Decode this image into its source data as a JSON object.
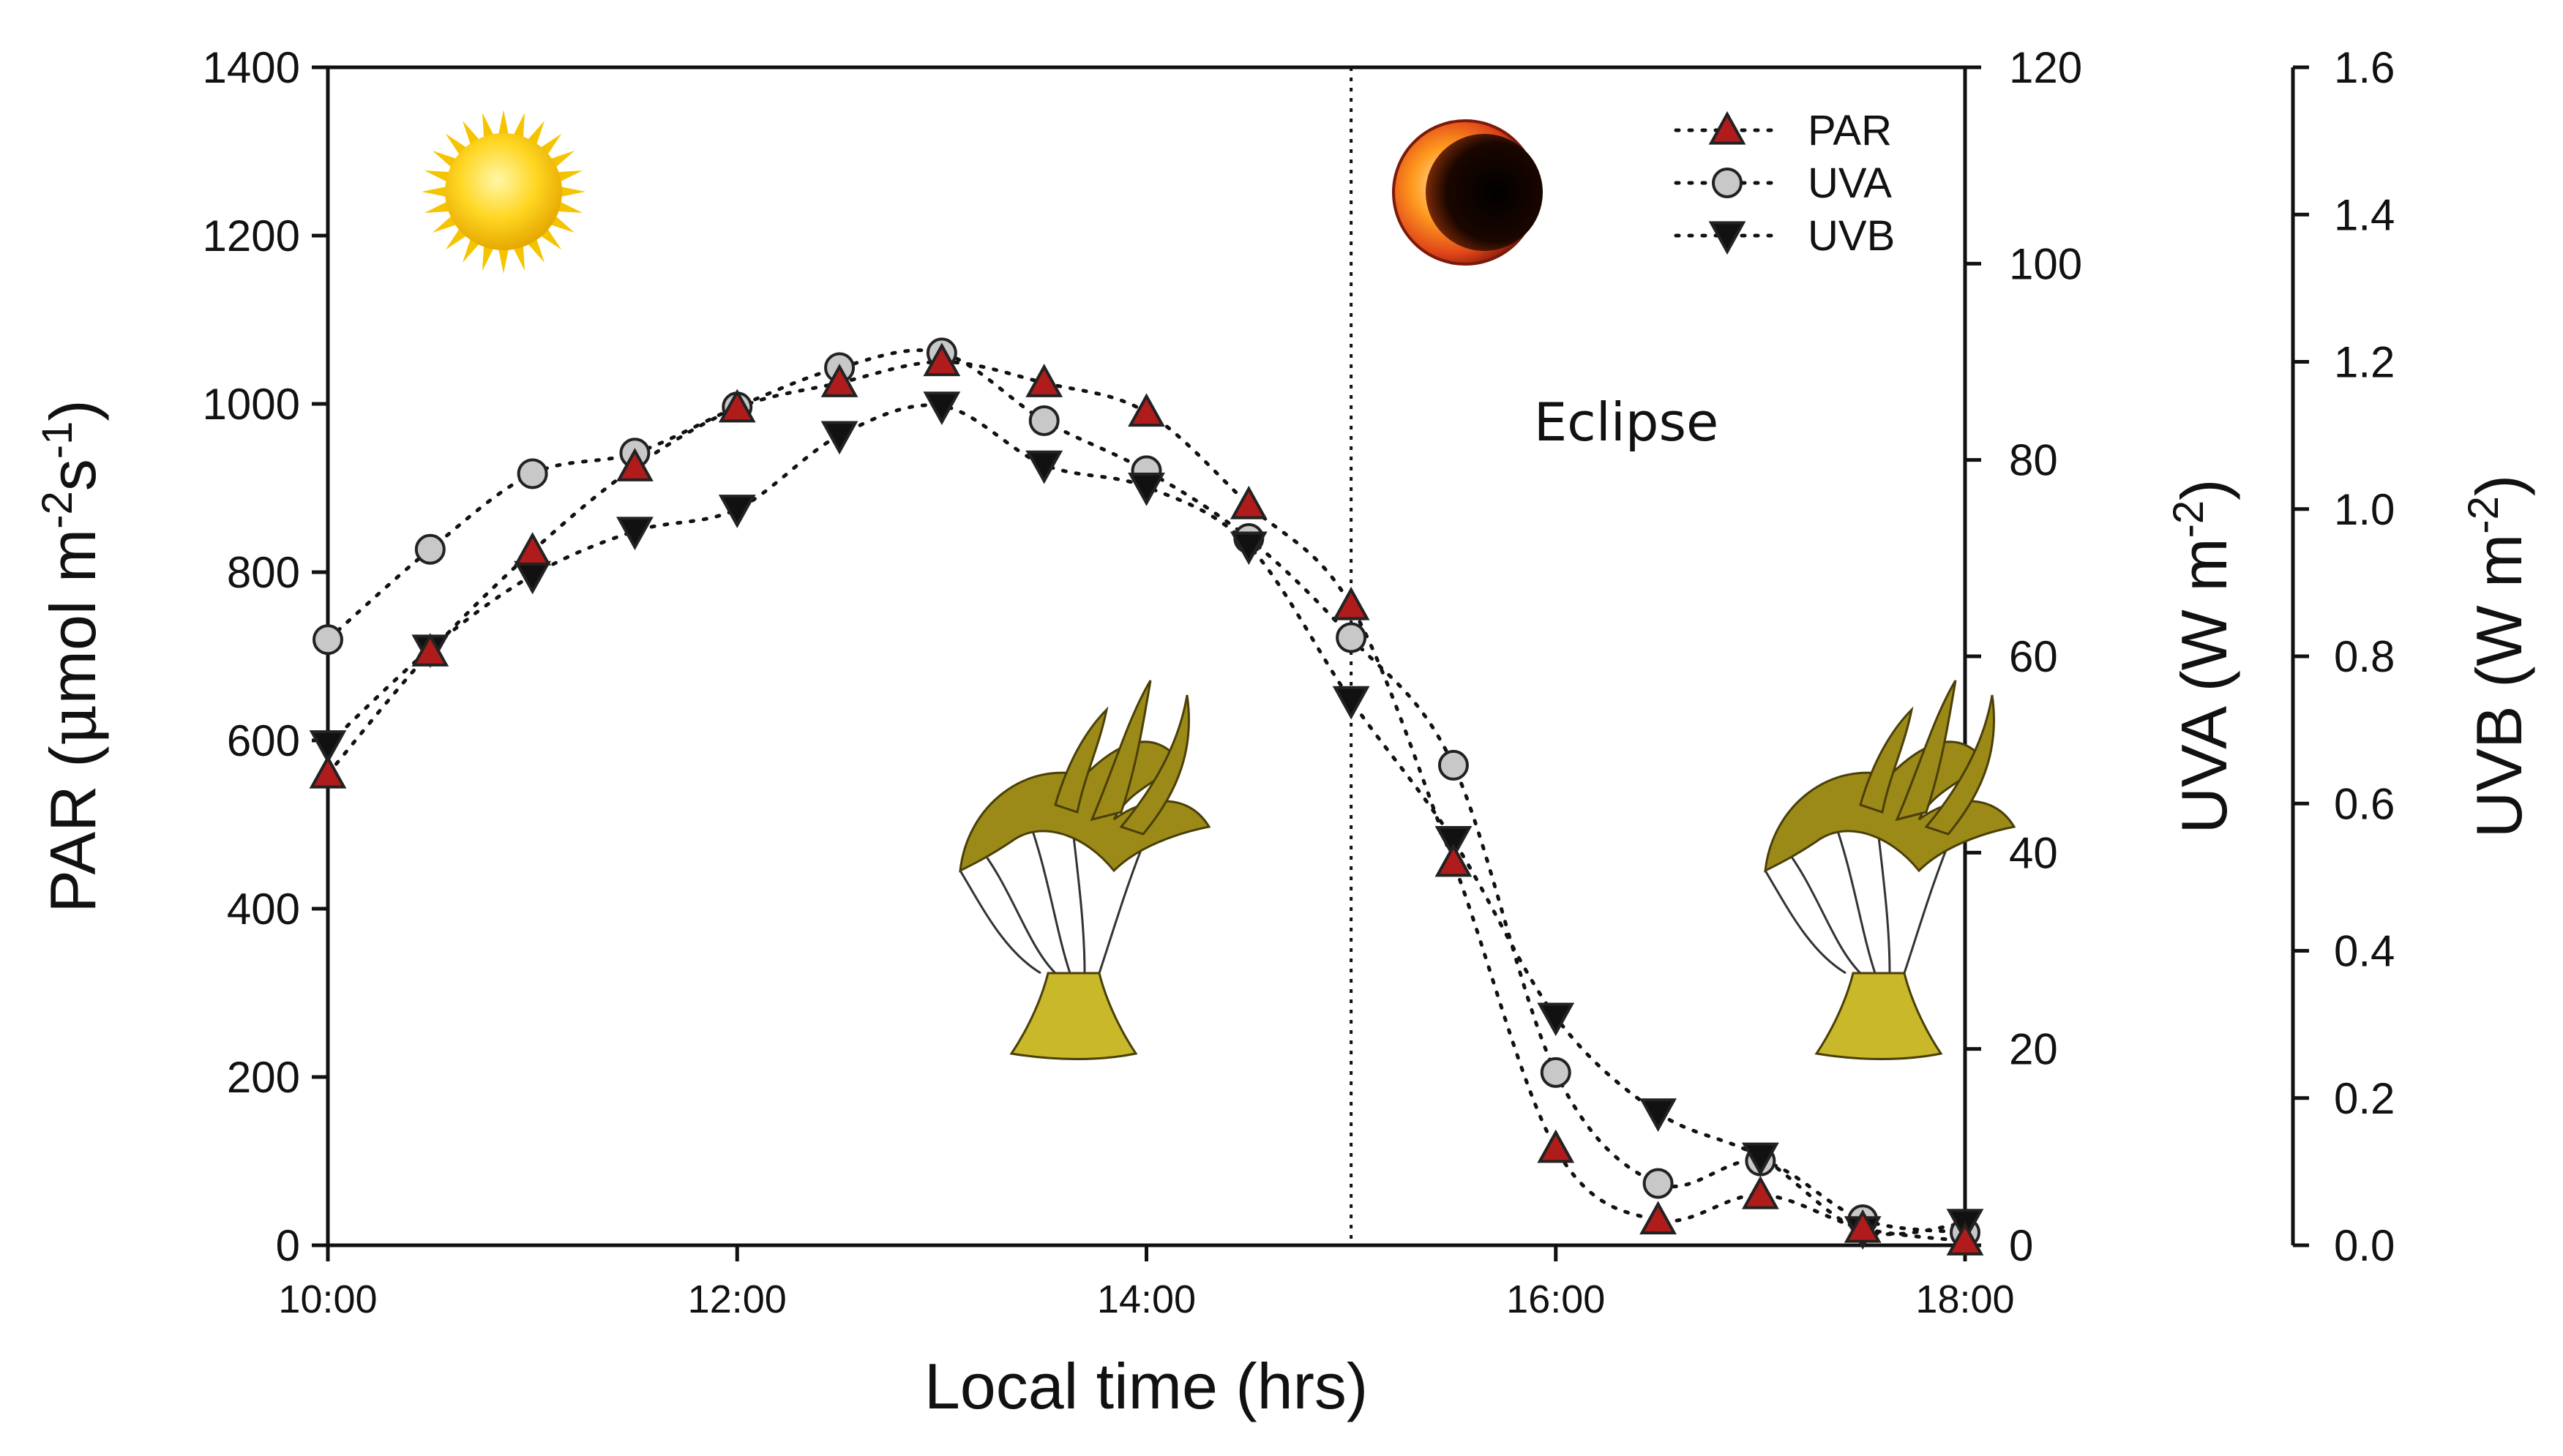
{
  "chart_data": {
    "type": "line",
    "xlabel": "Local time (hrs)",
    "x_ticks": [
      "10:00",
      "12:00",
      "14:00",
      "16:00",
      "18:00"
    ],
    "xlim": [
      10,
      18
    ],
    "axes": {
      "left": {
        "label_main": "PAR (",
        "label_mu": "μ",
        "label_unit": "mol m",
        "label_sup1": "-2",
        "label_mid": "s",
        "label_sup2": "-1",
        "label_end": ")",
        "range": [
          0,
          1400
        ],
        "ticks": [
          "0",
          "200",
          "400",
          "600",
          "800",
          "1000",
          "1200",
          "1400"
        ]
      },
      "right1": {
        "label_main": "UVA (W m",
        "label_sup": "-2",
        "label_end": ")",
        "range": [
          0,
          120
        ],
        "ticks": [
          "0",
          "20",
          "40",
          "60",
          "80",
          "100",
          "120"
        ]
      },
      "right2": {
        "label_main": "UVB (W m",
        "label_sup": "-2",
        "label_end": ")",
        "range": [
          0,
          1.6
        ],
        "ticks": [
          "0.0",
          "0.2",
          "0.4",
          "0.6",
          "0.8",
          "1.0",
          "1.2",
          "1.4",
          "1.6"
        ]
      }
    },
    "series": [
      {
        "name": "PAR",
        "axis": "left",
        "marker": "triangle-up",
        "color": "#b01c1c",
        "x": [
          10,
          10.5,
          11,
          11.5,
          12,
          12.5,
          13,
          13.5,
          14,
          14.5,
          15,
          15.5,
          16,
          16.5,
          17,
          17.5,
          18
        ],
        "y": [
          560,
          705,
          825,
          925,
          995,
          1025,
          1050,
          1025,
          990,
          880,
          760,
          455,
          115,
          30,
          60,
          20,
          5
        ]
      },
      {
        "name": "UVA",
        "axis": "right1",
        "marker": "circle",
        "color": "#c8c8c8",
        "x": [
          10,
          10.5,
          11,
          11.5,
          12,
          12.5,
          13,
          13.5,
          14,
          14.5,
          15,
          15.5,
          16,
          16.5,
          17,
          17.5,
          18
        ],
        "y": [
          61.7,
          70.9,
          78.6,
          80.7,
          85.4,
          89.4,
          90.9,
          84.0,
          78.9,
          72.0,
          61.9,
          48.9,
          17.6,
          6.3,
          8.6,
          2.6,
          1.3
        ]
      },
      {
        "name": "UVB",
        "axis": "right2",
        "marker": "triangle-down",
        "color": "#111111",
        "x": [
          10,
          10.5,
          11,
          11.5,
          12,
          12.5,
          13,
          13.5,
          14,
          14.5,
          15,
          15.5,
          16,
          16.5,
          17,
          17.5,
          18
        ],
        "y": [
          0.68,
          0.81,
          0.91,
          0.97,
          1.0,
          1.1,
          1.14,
          1.06,
          1.03,
          0.95,
          0.74,
          0.55,
          0.31,
          0.18,
          0.12,
          0.02,
          0.03
        ]
      }
    ],
    "annotations": [
      {
        "text": "Eclipse"
      }
    ],
    "vertical_line_x": 15,
    "legend": "top-right",
    "grid": false
  }
}
